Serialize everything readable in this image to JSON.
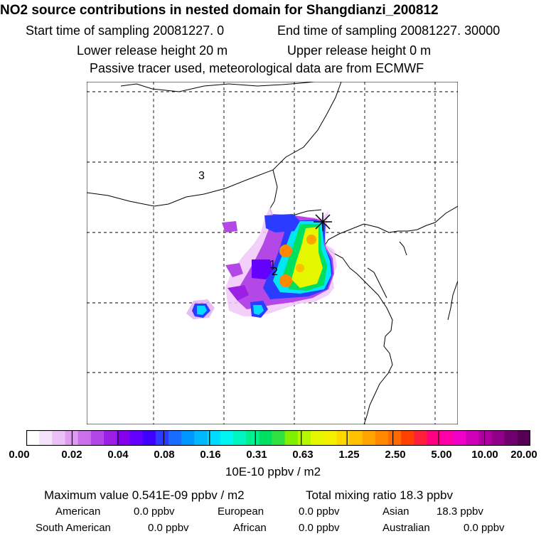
{
  "title": "NO2 source contributions in nested domain for Shangdianzi_200812",
  "header": {
    "start_label": "Start time of sampling 20081227.     0",
    "end_label": "End time of sampling 20081227. 30000",
    "lower_label": "Lower release height   20 m",
    "upper_label": "Upper release height    0 m",
    "tracer_note": "Passive tracer used, meteorological data are from ECMWF"
  },
  "map": {
    "region_labels": [
      "3",
      "1",
      "2"
    ],
    "receptor_marker": "star-cross-icon"
  },
  "colorbar": {
    "tick_labels": [
      "0.00",
      "0.02",
      "0.04",
      "0.08",
      "0.16",
      "0.31",
      "0.63",
      "1.25",
      "2.50",
      "5.00",
      "10.00",
      "20.00"
    ],
    "unit_label": "10E-10 ppbv / m2",
    "colors": [
      "#ffffff",
      "#f6e1fb",
      "#ecc0f6",
      "#dd9cf0",
      "#ca71ea",
      "#b347e6",
      "#9b1fe4",
      "#8500ec",
      "#6300ff",
      "#3f00ff",
      "#2b3bff",
      "#1a6bff",
      "#0096ff",
      "#00b8ff",
      "#00dcff",
      "#00f5f0",
      "#00f5c0",
      "#00f090",
      "#00e060",
      "#30e040",
      "#80f000",
      "#b8f500",
      "#e6f500",
      "#f5f000",
      "#ffd800",
      "#ffc000",
      "#ffa500",
      "#ff8800",
      "#ff6a00",
      "#ff4000",
      "#ff1f3a",
      "#ff0080",
      "#ff00a8",
      "#f000c8",
      "#d000b8",
      "#b000a0",
      "#900088",
      "#700070",
      "#550055"
    ]
  },
  "footer": {
    "max_label": "Maximum value  0.541E-09 ppbv / m2",
    "total_label": "Total mixing ratio       18.3 ppbv",
    "american": "American",
    "american_val": "0.0 ppbv",
    "european": "European",
    "european_val": "0.0 ppbv",
    "asian": "Asian",
    "asian_val": "18.3 ppbv",
    "south_american": "South American",
    "south_american_val": "0.0 ppbv",
    "african": "African",
    "african_val": "0.0 ppbv",
    "australian": "Australian",
    "australian_val": "0.0 ppbv"
  },
  "chart_data": {
    "type": "heatmap",
    "title": "NO2 source contributions in nested domain for Shangdianzi_200812",
    "colorbar_ticks": [
      0.0,
      0.02,
      0.04,
      0.08,
      0.16,
      0.31,
      0.63,
      1.25,
      2.5,
      5.0,
      10.0,
      20.0
    ],
    "colorbar_unit": "10E-10 ppbv / m2",
    "max_value": "0.541E-09 ppbv / m2",
    "total_mixing_ratio_ppbv": 18.3,
    "grid": true
  }
}
